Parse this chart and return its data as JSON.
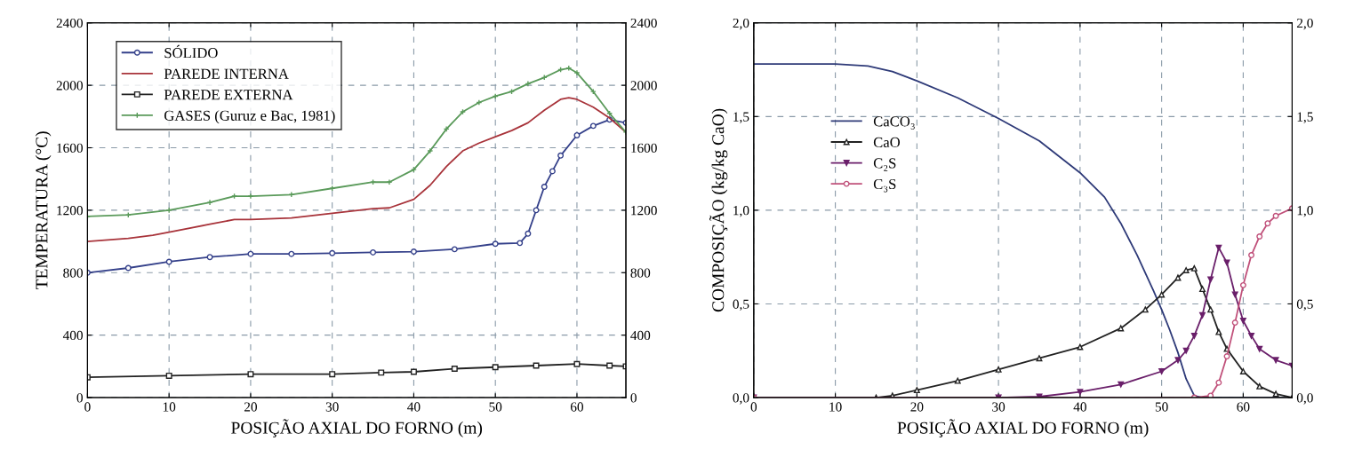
{
  "chart_data": [
    {
      "type": "line",
      "xlabel": "POSIÇÃO AXIAL DO FORNO (m)",
      "ylabel": "TEMPERATURA (°C)",
      "xlim": [
        0,
        66
      ],
      "xticks": [
        0,
        10,
        20,
        30,
        40,
        50,
        60
      ],
      "ylim": [
        0,
        2400
      ],
      "yticks": [
        0,
        400,
        800,
        1200,
        1600,
        2000,
        2400
      ],
      "y2lim": [
        0,
        2400
      ],
      "y2ticks": [
        0,
        400,
        800,
        1200,
        1600,
        2000,
        2400
      ],
      "grid": true,
      "legend": "top left",
      "series": [
        {
          "name": "SÓLIDO",
          "color": "#34408a",
          "marker": "circle",
          "x": [
            0,
            5,
            10,
            15,
            20,
            25,
            30,
            35,
            40,
            45,
            50,
            53,
            54,
            55,
            56,
            57,
            58,
            60,
            62,
            64,
            66
          ],
          "values": [
            800,
            830,
            870,
            900,
            920,
            920,
            925,
            930,
            935,
            950,
            985,
            990,
            1050,
            1200,
            1350,
            1450,
            1550,
            1680,
            1740,
            1780,
            1760
          ]
        },
        {
          "name": "PAREDE INTERNA",
          "color": "#a8333a",
          "marker": "none",
          "x": [
            0,
            5,
            8,
            10,
            15,
            18,
            20,
            25,
            30,
            35,
            37,
            40,
            42,
            44,
            46,
            48,
            50,
            52,
            54,
            56,
            58,
            59,
            60,
            62,
            64,
            66
          ],
          "values": [
            1000,
            1020,
            1040,
            1060,
            1110,
            1140,
            1140,
            1150,
            1180,
            1210,
            1215,
            1270,
            1360,
            1480,
            1580,
            1630,
            1670,
            1710,
            1760,
            1840,
            1910,
            1920,
            1910,
            1860,
            1790,
            1700
          ]
        },
        {
          "name": "PAREDE EXTERNA",
          "color": "#222222",
          "marker": "square",
          "x": [
            0,
            10,
            20,
            30,
            36,
            40,
            45,
            50,
            55,
            60,
            64,
            66
          ],
          "values": [
            130,
            140,
            150,
            150,
            160,
            165,
            185,
            195,
            205,
            215,
            205,
            200
          ]
        },
        {
          "name": "GASES (Guruz e Bac, 1981)",
          "color": "#5a9a5a",
          "marker": "cross",
          "x": [
            0,
            5,
            10,
            15,
            18,
            20,
            25,
            30,
            35,
            37,
            40,
            42,
            44,
            46,
            48,
            50,
            52,
            54,
            56,
            58,
            59,
            60,
            62,
            64,
            66
          ],
          "values": [
            1160,
            1170,
            1200,
            1250,
            1290,
            1290,
            1300,
            1340,
            1380,
            1380,
            1460,
            1580,
            1720,
            1830,
            1890,
            1930,
            1960,
            2010,
            2050,
            2100,
            2110,
            2080,
            1960,
            1820,
            1700
          ]
        }
      ]
    },
    {
      "type": "line",
      "xlabel": "POSIÇÃO AXIAL DO FORNO (m)",
      "ylabel": "COMPOSIÇÃO (kg/kg CaO)",
      "xlim": [
        0,
        66
      ],
      "xticks": [
        0,
        10,
        20,
        30,
        40,
        50,
        60
      ],
      "ylim": [
        0,
        2.0
      ],
      "yticks": [
        {
          "value": 0,
          "label": "0,0"
        },
        {
          "value": 0.5,
          "label": "0,5"
        },
        {
          "value": 1.0,
          "label": "1,0"
        },
        {
          "value": 1.5,
          "label": "1,5"
        },
        {
          "value": 2.0,
          "label": "2,0"
        }
      ],
      "y2lim": [
        0,
        2.0
      ],
      "y2ticks": [
        {
          "value": 0,
          "label": "0,0"
        },
        {
          "value": 0.5,
          "label": "0,5"
        },
        {
          "value": 1.0,
          "label": "1,0"
        },
        {
          "value": 1.5,
          "label": "1,5"
        },
        {
          "value": 2.0,
          "label": "2,0"
        }
      ],
      "grid": true,
      "legend": "left",
      "series": [
        {
          "name": "CaCO₃",
          "color": "#2e3a78",
          "marker": "none",
          "x": [
            0,
            10,
            14,
            17,
            20,
            25,
            30,
            35,
            40,
            43,
            45,
            47,
            49,
            50,
            51,
            52,
            53,
            54,
            55,
            66
          ],
          "values": [
            1.78,
            1.78,
            1.77,
            1.74,
            1.69,
            1.6,
            1.49,
            1.37,
            1.2,
            1.07,
            0.93,
            0.76,
            0.57,
            0.47,
            0.36,
            0.24,
            0.1,
            0.01,
            0.0,
            0.0
          ]
        },
        {
          "name": "CaO",
          "color": "#222222",
          "marker": "triangle",
          "x": [
            0,
            15,
            17,
            20,
            25,
            30,
            35,
            40,
            45,
            48,
            50,
            52,
            53,
            54,
            55,
            56,
            57,
            58,
            60,
            62,
            64,
            66
          ],
          "values": [
            0,
            0,
            0.01,
            0.04,
            0.09,
            0.15,
            0.21,
            0.27,
            0.37,
            0.47,
            0.55,
            0.64,
            0.68,
            0.69,
            0.58,
            0.47,
            0.35,
            0.26,
            0.14,
            0.06,
            0.02,
            0.0
          ]
        },
        {
          "name": "C₂S",
          "color": "#6a1f6a",
          "marker": "triangle_down",
          "x": [
            0,
            30,
            35,
            40,
            45,
            50,
            52,
            53,
            54,
            55,
            56,
            57,
            58,
            59,
            60,
            61,
            62,
            64,
            66
          ],
          "values": [
            0,
            0,
            0.005,
            0.03,
            0.07,
            0.14,
            0.2,
            0.25,
            0.33,
            0.44,
            0.63,
            0.8,
            0.72,
            0.55,
            0.41,
            0.33,
            0.26,
            0.2,
            0.17
          ]
        },
        {
          "name": "C₃S",
          "color": "#c0507a",
          "marker": "circle",
          "x": [
            0,
            54,
            56,
            57,
            58,
            59,
            60,
            61,
            62,
            63,
            64,
            66
          ],
          "values": [
            0,
            0,
            0.01,
            0.08,
            0.22,
            0.4,
            0.6,
            0.76,
            0.86,
            0.93,
            0.97,
            1.01
          ]
        }
      ]
    }
  ]
}
